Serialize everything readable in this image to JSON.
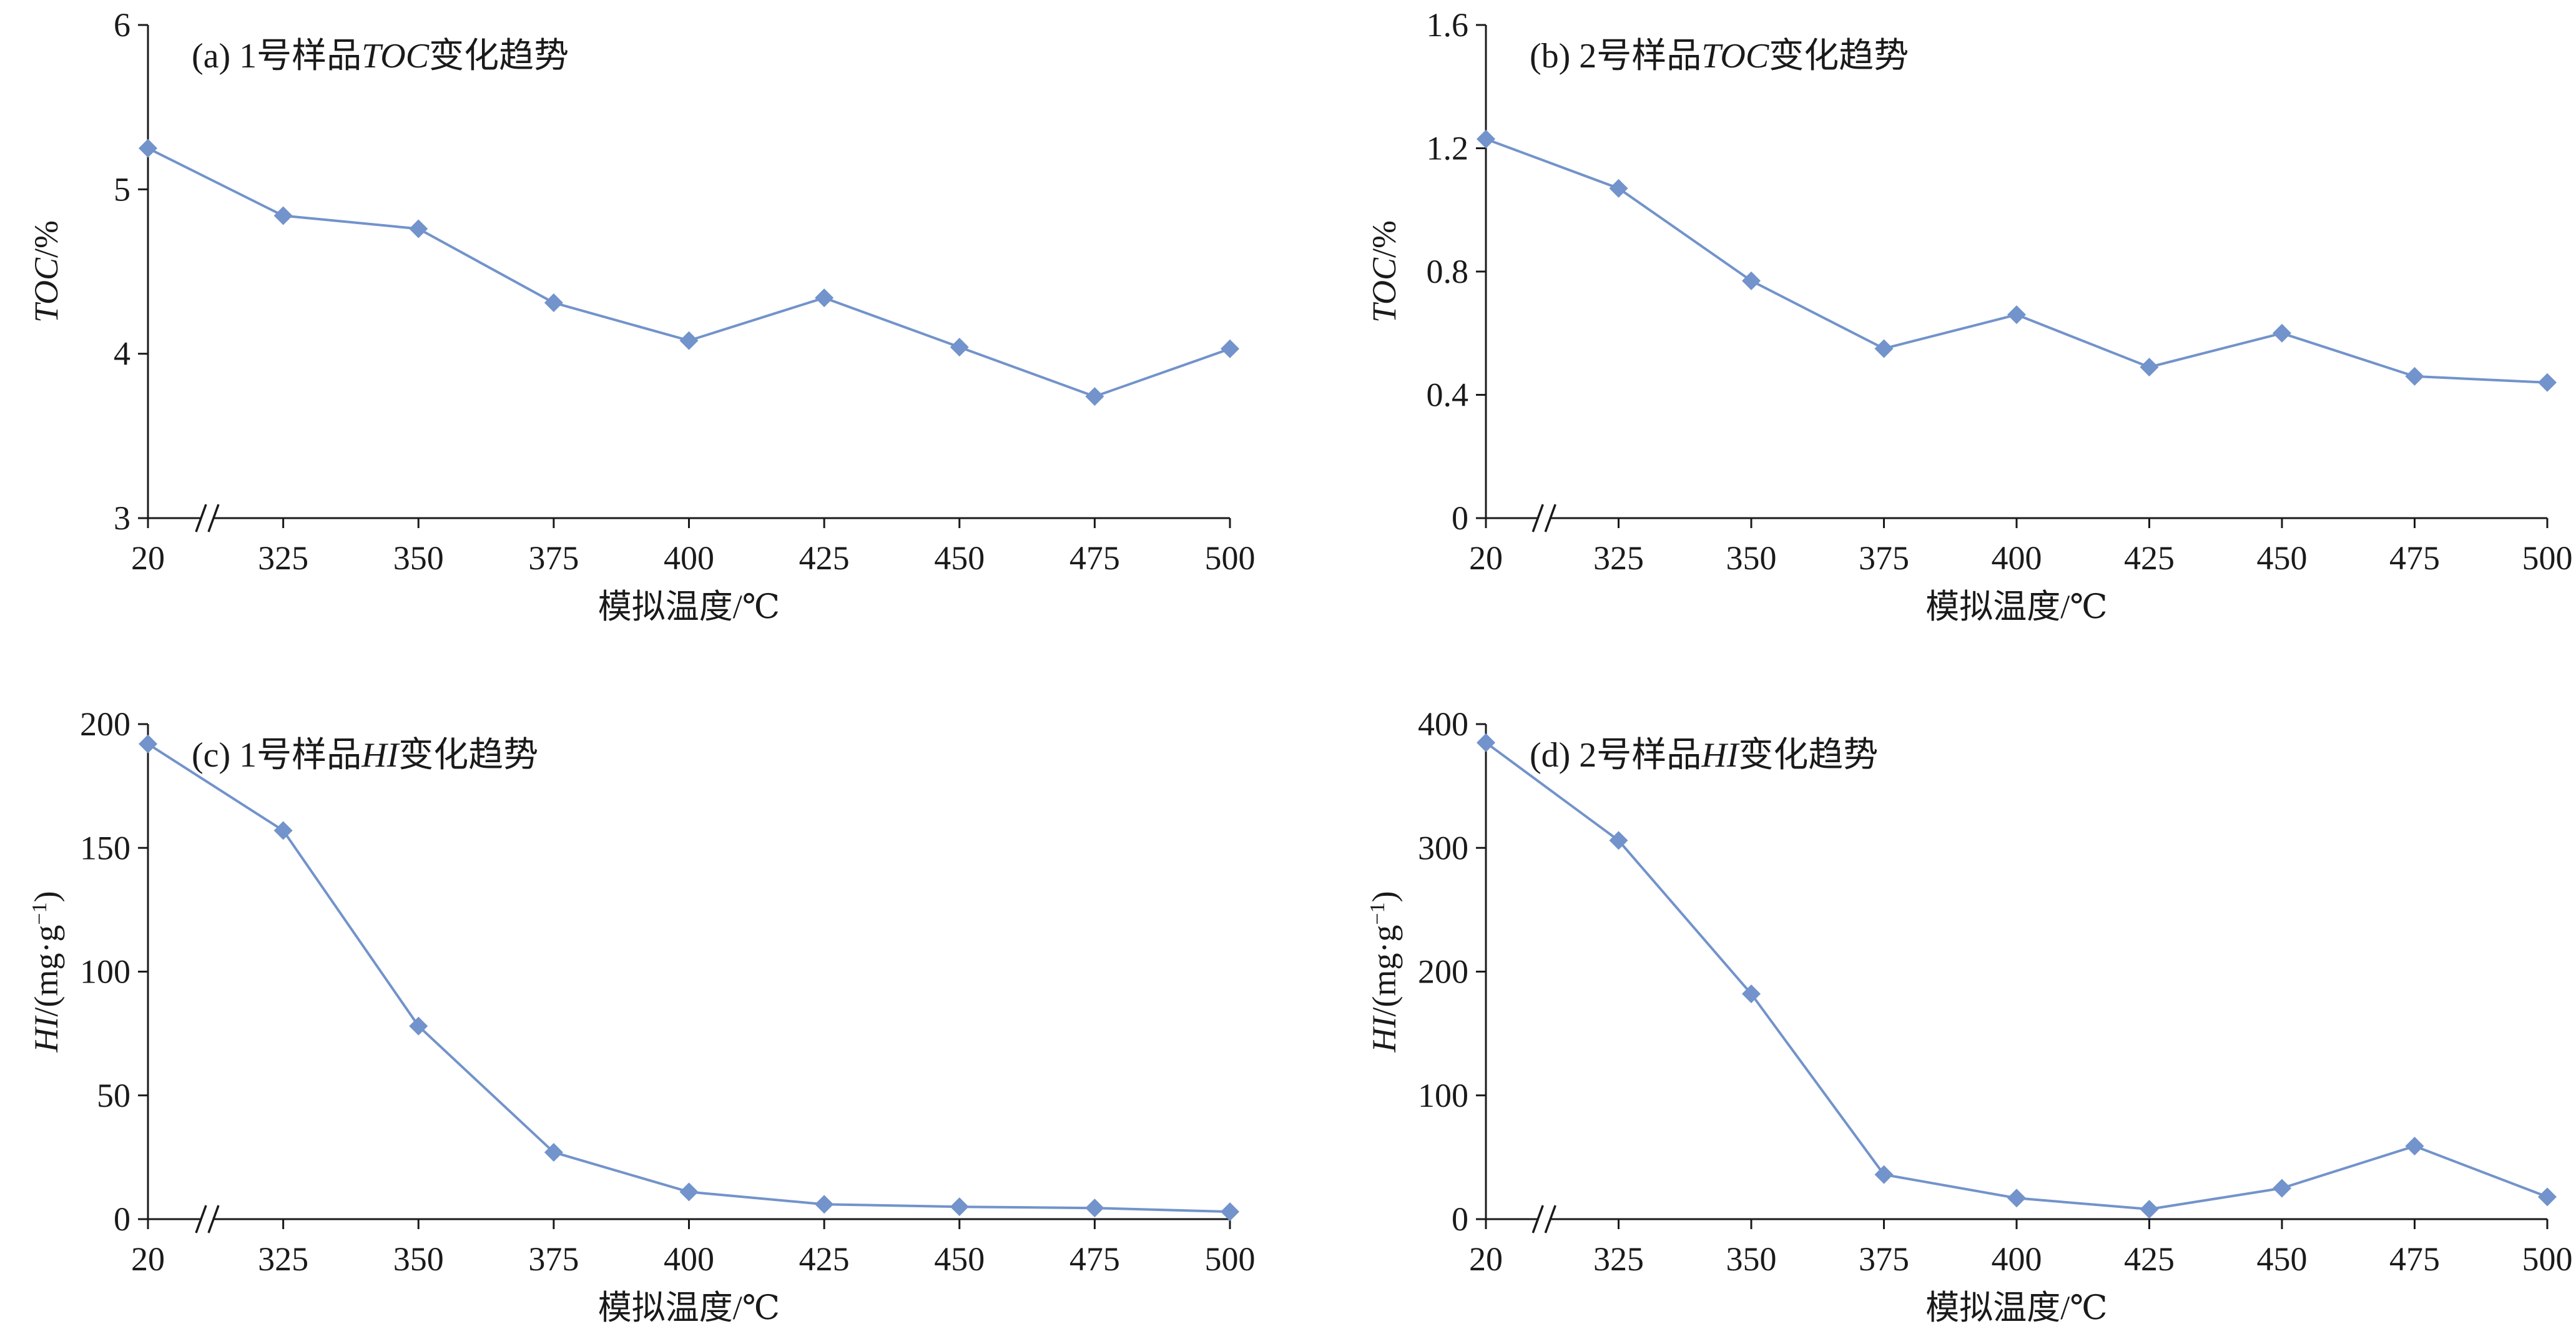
{
  "style": {
    "series_color": "#7293CB",
    "axis_color": "#1a1a1a"
  },
  "chart_data": [
    {
      "panel": "a",
      "type": "line",
      "title_parts": [
        {
          "text": "(a) 1号样品",
          "italic": false
        },
        {
          "text": "TOC",
          "italic": true
        },
        {
          "text": "变化趋势",
          "italic": false
        }
      ],
      "categories": [
        "20",
        "325",
        "350",
        "375",
        "400",
        "425",
        "450",
        "475",
        "500"
      ],
      "axis_break_after": "20",
      "values": [
        5.25,
        4.84,
        4.76,
        4.31,
        4.08,
        4.34,
        4.04,
        3.74,
        4.03
      ],
      "xlabel": "模拟温度/℃",
      "ylabel_parts": [
        {
          "text": "TOC",
          "italic": true
        },
        {
          "text": "/%",
          "italic": false
        }
      ],
      "ylim": [
        3,
        6
      ],
      "yticks": [
        "3",
        "4",
        "5",
        "6"
      ],
      "marker": "diamond",
      "grid": false,
      "legend": "none"
    },
    {
      "panel": "b",
      "type": "line",
      "title_parts": [
        {
          "text": "(b) 2号样品",
          "italic": false
        },
        {
          "text": "TOC",
          "italic": true
        },
        {
          "text": "变化趋势",
          "italic": false
        }
      ],
      "categories": [
        "20",
        "325",
        "350",
        "375",
        "400",
        "425",
        "450",
        "475",
        "500"
      ],
      "axis_break_after": "20",
      "values": [
        1.23,
        1.07,
        0.77,
        0.55,
        0.66,
        0.49,
        0.6,
        0.46,
        0.44
      ],
      "xlabel": "模拟温度/℃",
      "ylabel_parts": [
        {
          "text": "TOC",
          "italic": true
        },
        {
          "text": "/%",
          "italic": false
        }
      ],
      "ylim": [
        0,
        1.6
      ],
      "yticks": [
        "0",
        "0.4",
        "0.8",
        "1.2",
        "1.6"
      ],
      "marker": "diamond",
      "grid": false,
      "legend": "none"
    },
    {
      "panel": "c",
      "type": "line",
      "title_parts": [
        {
          "text": "(c) 1号样品",
          "italic": false
        },
        {
          "text": "HI",
          "italic": true
        },
        {
          "text": "变化趋势",
          "italic": false
        }
      ],
      "categories": [
        "20",
        "325",
        "350",
        "375",
        "400",
        "425",
        "450",
        "475",
        "500"
      ],
      "axis_break_after": "20",
      "values": [
        192,
        157,
        78,
        27,
        11,
        6,
        5,
        4.5,
        3
      ],
      "xlabel": "模拟温度/℃",
      "ylabel_parts": [
        {
          "text": "HI",
          "italic": true
        },
        {
          "text": "/(mg·g",
          "italic": false
        },
        {
          "text": "−1",
          "italic": false,
          "sup": true
        },
        {
          "text": ")",
          "italic": false
        }
      ],
      "ylim": [
        0,
        200
      ],
      "yticks": [
        "0",
        "50",
        "100",
        "150",
        "200"
      ],
      "marker": "diamond",
      "grid": false,
      "legend": "none"
    },
    {
      "panel": "d",
      "type": "line",
      "title_parts": [
        {
          "text": "(d) 2号样品",
          "italic": false
        },
        {
          "text": "HI",
          "italic": true
        },
        {
          "text": "变化趋势",
          "italic": false
        }
      ],
      "categories": [
        "20",
        "325",
        "350",
        "375",
        "400",
        "425",
        "450",
        "475",
        "500"
      ],
      "axis_break_after": "20",
      "values": [
        385,
        306,
        182,
        36,
        17,
        8,
        25,
        59,
        18
      ],
      "xlabel": "模拟温度/℃",
      "ylabel_parts": [
        {
          "text": "HI",
          "italic": true
        },
        {
          "text": "/(mg·g",
          "italic": false
        },
        {
          "text": "−1",
          "italic": false,
          "sup": true
        },
        {
          "text": ")",
          "italic": false
        }
      ],
      "ylim": [
        0,
        400
      ],
      "yticks": [
        "0",
        "100",
        "200",
        "300",
        "400"
      ],
      "marker": "diamond",
      "grid": false,
      "legend": "none"
    }
  ]
}
